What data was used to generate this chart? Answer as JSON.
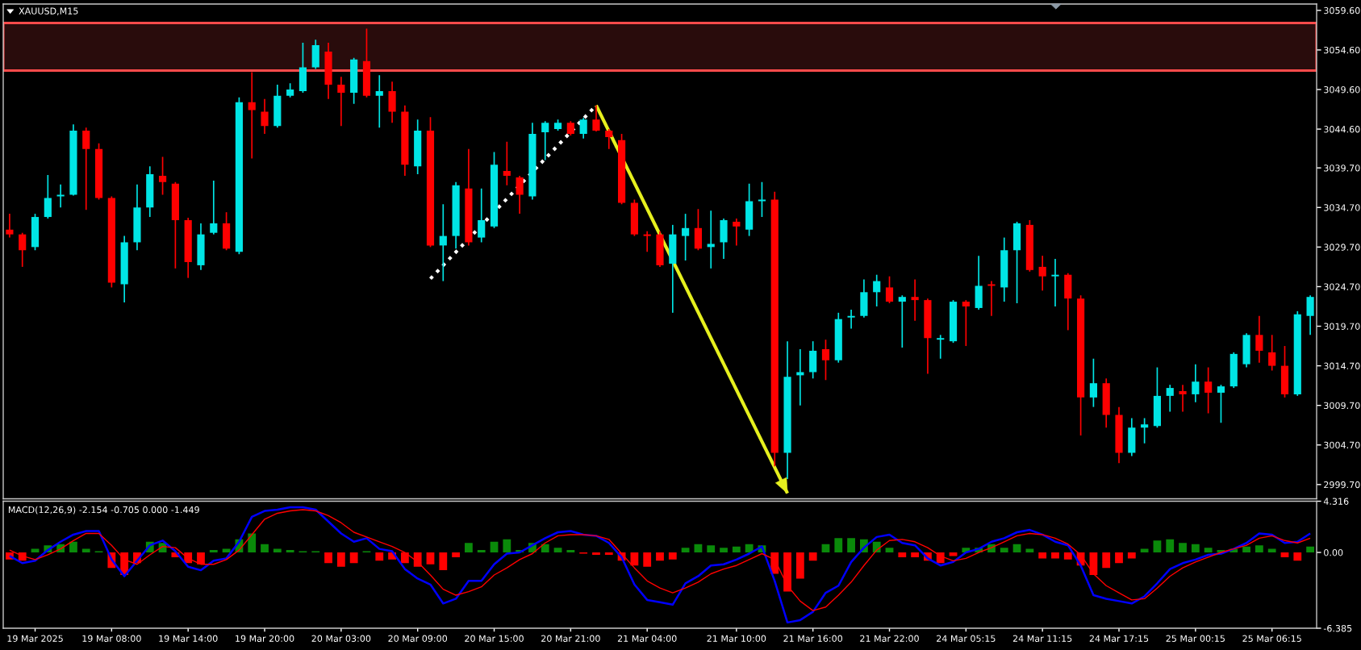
{
  "chart_data": [
    {
      "type": "candlestick",
      "title": "XAUUSD,M15",
      "categories": [
        null,
        null,
        null,
        null,
        null,
        null,
        null,
        null,
        null,
        null,
        null,
        null,
        null,
        null,
        null,
        null,
        null,
        null,
        null,
        null,
        null,
        null,
        null,
        null,
        null,
        null,
        null,
        null,
        null,
        null,
        null,
        null,
        null,
        null,
        null,
        null,
        null,
        null,
        null,
        null,
        null,
        null,
        null,
        null,
        null,
        null,
        null,
        null,
        null,
        null,
        null,
        null,
        null,
        null,
        null,
        null,
        null,
        null,
        null,
        null,
        null,
        null,
        null,
        null,
        null,
        null,
        null,
        null,
        null,
        null,
        null,
        null,
        null,
        null,
        null,
        null,
        null,
        null,
        null,
        null,
        null,
        null,
        null,
        null,
        null,
        null,
        null,
        null,
        null,
        null,
        null,
        null,
        null,
        null,
        null,
        null,
        null,
        null,
        null,
        null,
        null,
        null,
        null
      ],
      "ohlc": [
        [
          3031.9,
          3033.9,
          3030.9,
          3031.3
        ],
        [
          3031.3,
          3031.5,
          3027.2,
          3029.3
        ],
        [
          3029.7,
          3033.9,
          3029.3,
          3033.5
        ],
        [
          3033.5,
          3038.8,
          3033.3,
          3035.9
        ],
        [
          3036.1,
          3037.6,
          3034.7,
          3036.3
        ],
        [
          3036.3,
          3045.2,
          3036.2,
          3044.4
        ],
        [
          3044.4,
          3044.8,
          3034.4,
          3042.1
        ],
        [
          3042.1,
          3042.8,
          3035.7,
          3035.9
        ],
        [
          3035.9,
          3036.1,
          3024.6,
          3025.2
        ],
        [
          3025.0,
          3031.1,
          3022.7,
          3030.3
        ],
        [
          3030.3,
          3037.6,
          3029.3,
          3034.7
        ],
        [
          3034.7,
          3039.9,
          3033.5,
          3038.9
        ],
        [
          3038.7,
          3041.1,
          3036.3,
          3037.9
        ],
        [
          3037.7,
          3037.9,
          3027.0,
          3033.1
        ],
        [
          3033.1,
          3033.4,
          3025.8,
          3027.8
        ],
        [
          3027.4,
          3032.7,
          3026.8,
          3031.3
        ],
        [
          3031.5,
          3038.1,
          3031.3,
          3032.7
        ],
        [
          3032.7,
          3034.1,
          3029.3,
          3029.5
        ],
        [
          3029.1,
          3048.6,
          3028.8,
          3048.0
        ],
        [
          3048.0,
          3051.8,
          3040.9,
          3047.0
        ],
        [
          3046.8,
          3048.4,
          3044.0,
          3045.0
        ],
        [
          3045.0,
          3050.2,
          3044.8,
          3048.8
        ],
        [
          3048.8,
          3050.4,
          3048.6,
          3049.6
        ],
        [
          3049.4,
          3055.5,
          3049.2,
          3052.4
        ],
        [
          3052.4,
          3055.9,
          3052.2,
          3055.2
        ],
        [
          3054.4,
          3055.5,
          3048.4,
          3050.2
        ],
        [
          3050.2,
          3051.2,
          3045.0,
          3049.2
        ],
        [
          3049.2,
          3053.6,
          3047.8,
          3053.4
        ],
        [
          3053.2,
          3057.3,
          3048.6,
          3048.8
        ],
        [
          3048.8,
          3051.4,
          3044.8,
          3049.4
        ],
        [
          3049.4,
          3050.6,
          3045.4,
          3046.8
        ],
        [
          3046.8,
          3047.6,
          3038.7,
          3040.1
        ],
        [
          3039.9,
          3045.8,
          3038.9,
          3044.4
        ],
        [
          3044.4,
          3046.1,
          3029.7,
          3029.9
        ],
        [
          3029.9,
          3035.1,
          3025.4,
          3031.1
        ],
        [
          3031.1,
          3037.9,
          3029.5,
          3037.5
        ],
        [
          3037.1,
          3042.1,
          3029.9,
          3030.3
        ],
        [
          3030.9,
          3037.1,
          3030.3,
          3033.1
        ],
        [
          3032.3,
          3041.7,
          3032.1,
          3040.1
        ],
        [
          3039.3,
          3043.0,
          3037.5,
          3038.7
        ],
        [
          3038.5,
          3038.7,
          3033.9,
          3036.3
        ],
        [
          3036.1,
          3045.4,
          3035.7,
          3044.0
        ],
        [
          3044.2,
          3045.6,
          3040.7,
          3045.4
        ],
        [
          3044.6,
          3045.8,
          3044.4,
          3045.4
        ],
        [
          3045.4,
          3045.6,
          3043.8,
          3044.0
        ],
        [
          3044.0,
          3046.0,
          3043.4,
          3045.8
        ],
        [
          3045.8,
          3047.6,
          3044.3,
          3044.4
        ],
        [
          3044.4,
          3044.6,
          3042.1,
          3043.6
        ],
        [
          3043.2,
          3044.0,
          3035.1,
          3035.3
        ],
        [
          3035.3,
          3035.7,
          3031.1,
          3031.3
        ],
        [
          3031.3,
          3031.7,
          3029.1,
          3031.1
        ],
        [
          3031.3,
          3031.7,
          3027.2,
          3027.4
        ],
        [
          3027.6,
          3032.5,
          3021.4,
          3031.3
        ],
        [
          3031.1,
          3033.9,
          3028.0,
          3032.1
        ],
        [
          3032.1,
          3034.5,
          3029.3,
          3029.5
        ],
        [
          3029.7,
          3034.3,
          3027.0,
          3030.1
        ],
        [
          3030.3,
          3033.3,
          3028.2,
          3033.1
        ],
        [
          3032.9,
          3033.3,
          3029.9,
          3032.3
        ],
        [
          3031.9,
          3037.7,
          3031.1,
          3035.5
        ],
        [
          3035.5,
          3037.9,
          3033.5,
          3035.7
        ],
        [
          3035.7,
          3036.7,
          3002.0,
          3003.7
        ],
        [
          3003.7,
          3017.8,
          3000.4,
          3013.3
        ],
        [
          3013.5,
          3016.8,
          3009.7,
          3013.9
        ],
        [
          3013.9,
          3017.8,
          3013.1,
          3016.6
        ],
        [
          3016.8,
          3018.0,
          3012.9,
          3015.4
        ],
        [
          3015.4,
          3021.4,
          3015.1,
          3020.6
        ],
        [
          3020.8,
          3021.8,
          3019.4,
          3021.0
        ],
        [
          3021.0,
          3025.6,
          3020.8,
          3024.0
        ],
        [
          3024.0,
          3026.2,
          3022.2,
          3025.4
        ],
        [
          3024.6,
          3026.0,
          3022.6,
          3022.8
        ],
        [
          3022.8,
          3023.6,
          3017.0,
          3023.4
        ],
        [
          3023.4,
          3025.6,
          3020.4,
          3023.0
        ],
        [
          3023.0,
          3023.2,
          3013.7,
          3018.2
        ],
        [
          3018.0,
          3018.6,
          3015.6,
          3018.2
        ],
        [
          3017.8,
          3023.0,
          3017.6,
          3022.8
        ],
        [
          3022.8,
          3023.0,
          3017.2,
          3022.2
        ],
        [
          3022.0,
          3028.6,
          3021.8,
          3024.8
        ],
        [
          3025.0,
          3025.4,
          3021.0,
          3024.8
        ],
        [
          3024.6,
          3030.9,
          3022.8,
          3029.3
        ],
        [
          3029.3,
          3032.9,
          3022.6,
          3032.7
        ],
        [
          3032.5,
          3033.1,
          3026.6,
          3026.8
        ],
        [
          3027.2,
          3028.6,
          3024.2,
          3026.0
        ],
        [
          3026.0,
          3028.2,
          3022.2,
          3026.2
        ],
        [
          3026.2,
          3026.4,
          3019.2,
          3023.2
        ],
        [
          3023.2,
          3023.6,
          3005.9,
          3010.7
        ],
        [
          3010.7,
          3015.6,
          3009.5,
          3012.5
        ],
        [
          3012.5,
          3013.1,
          3006.9,
          3008.5
        ],
        [
          3008.5,
          3009.5,
          3002.4,
          3003.7
        ],
        [
          3003.7,
          3008.1,
          3003.3,
          3006.9
        ],
        [
          3006.9,
          3008.1,
          3004.9,
          3007.3
        ],
        [
          3007.1,
          3014.5,
          3006.9,
          3010.9
        ],
        [
          3010.9,
          3012.3,
          3008.9,
          3011.9
        ],
        [
          3011.5,
          3012.3,
          3008.9,
          3011.1
        ],
        [
          3011.1,
          3014.9,
          3010.1,
          3012.7
        ],
        [
          3012.7,
          3014.5,
          3008.7,
          3011.3
        ],
        [
          3011.3,
          3012.3,
          3007.5,
          3012.1
        ],
        [
          3012.1,
          3016.4,
          3011.9,
          3016.2
        ],
        [
          3014.9,
          3018.8,
          3014.5,
          3018.6
        ],
        [
          3018.6,
          3021.0,
          3015.1,
          3016.6
        ],
        [
          3016.4,
          3018.6,
          3014.1,
          3014.7
        ],
        [
          3014.7,
          3017.2,
          3010.7,
          3011.1
        ],
        [
          3011.1,
          3021.6,
          3010.9,
          3021.2
        ],
        [
          3021.0,
          3023.6,
          3018.6,
          3023.4
        ]
      ],
      "colors": [
        "#ff0000",
        "#ff0000",
        "#00e5e5",
        "#00e5e5",
        "#00e5e5",
        "#00e5e5",
        "#ff0000",
        "#ff0000",
        "#ff0000",
        "#00e5e5",
        "#00e5e5",
        "#00e5e5",
        "#ff0000",
        "#ff0000",
        "#ff0000",
        "#00e5e5",
        "#00e5e5",
        "#ff0000",
        "#00e5e5",
        "#ff0000",
        "#ff0000",
        "#00e5e5",
        "#00e5e5",
        "#00e5e5",
        "#00e5e5",
        "#ff0000",
        "#ff0000",
        "#00e5e5",
        "#ff0000",
        "#00e5e5",
        "#ff0000",
        "#ff0000",
        "#00e5e5",
        "#ff0000",
        "#00e5e5",
        "#00e5e5",
        "#ff0000",
        "#00e5e5",
        "#00e5e5",
        "#ff0000",
        "#ff0000",
        "#00e5e5",
        "#00e5e5",
        "#00e5e5",
        "#ff0000",
        "#00e5e5",
        "#ff0000",
        "#ff0000",
        "#ff0000",
        "#ff0000",
        "#ff0000",
        "#ff0000",
        "#00e5e5",
        "#00e5e5",
        "#ff0000",
        "#00e5e5",
        "#00e5e5",
        "#ff0000",
        "#00e5e5",
        "#00e5e5",
        "#ff0000",
        "#00e5e5",
        "#00e5e5",
        "#00e5e5",
        "#ff0000",
        "#00e5e5",
        "#00e5e5",
        "#00e5e5",
        "#00e5e5",
        "#ff0000",
        "#00e5e5",
        "#ff0000",
        "#ff0000",
        "#00e5e5",
        "#00e5e5",
        "#ff0000",
        "#00e5e5",
        "#ff0000",
        "#00e5e5",
        "#00e5e5",
        "#ff0000",
        "#ff0000",
        "#00e5e5",
        "#ff0000",
        "#ff0000",
        "#00e5e5",
        "#ff0000",
        "#ff0000",
        "#00e5e5",
        "#00e5e5",
        "#00e5e5",
        "#00e5e5",
        "#ff0000",
        "#00e5e5",
        "#ff0000",
        "#00e5e5",
        "#00e5e5",
        "#00e5e5",
        "#ff0000",
        "#ff0000",
        "#ff0000",
        "#00e5e5",
        "#00e5e5"
      ],
      "series": [
        {
          "type": "line",
          "color": "#ffffff",
          "line_style": "dotted",
          "values": [
            null,
            null,
            null,
            null,
            null,
            null,
            null,
            null,
            null,
            null,
            null,
            null,
            null,
            null,
            null,
            null,
            null,
            null,
            null,
            null,
            null,
            null,
            null,
            null,
            null,
            null,
            null,
            null,
            null,
            null,
            null,
            null,
            null,
            3025.7,
            null,
            null,
            null,
            null,
            null,
            null,
            null,
            null,
            null,
            null,
            null,
            null,
            3047.6,
            null,
            null,
            null,
            null,
            null,
            null,
            null,
            null,
            null,
            null,
            null,
            null,
            null,
            null,
            null,
            null,
            null,
            null,
            null,
            null,
            null,
            null,
            null,
            null,
            null,
            null,
            null,
            null,
            null,
            null,
            null,
            null,
            null,
            null,
            null,
            null,
            null,
            null,
            null,
            null,
            null,
            null,
            null,
            null,
            null,
            null,
            null,
            null,
            null,
            null,
            null,
            null,
            null,
            null,
            null,
            null
          ]
        },
        {
          "type": "line",
          "color": "#e6f01e",
          "line_style": "solid",
          "values": [
            null,
            null,
            null,
            null,
            null,
            null,
            null,
            null,
            null,
            null,
            null,
            null,
            null,
            null,
            null,
            null,
            null,
            null,
            null,
            null,
            null,
            null,
            null,
            null,
            null,
            null,
            null,
            null,
            null,
            null,
            null,
            null,
            null,
            null,
            null,
            null,
            null,
            null,
            null,
            null,
            null,
            null,
            null,
            null,
            null,
            null,
            3047.6,
            null,
            null,
            null,
            null,
            null,
            null,
            null,
            null,
            null,
            null,
            null,
            null,
            null,
            null,
            2998.6,
            null,
            null,
            null,
            null,
            null,
            null,
            null,
            null,
            null,
            null,
            null,
            null,
            null,
            null,
            null,
            null,
            null,
            null,
            null,
            null,
            null,
            null,
            null,
            null,
            null,
            null,
            null,
            null,
            null,
            null,
            null,
            null,
            null,
            null,
            null,
            null,
            null,
            null,
            null,
            null,
            null
          ]
        }
      ],
      "bands": [
        {
          "axis": "y",
          "from": 3052.0,
          "to": 3058.0,
          "color": "#ff4b4b"
        }
      ],
      "ylim": [
        2997.9,
        3060.4
      ],
      "yticks": [
        {
          "value": 3059.6,
          "label": "3059.60"
        },
        {
          "value": 3054.6,
          "label": "3054.60"
        },
        {
          "value": 3049.6,
          "label": "3049.60"
        },
        {
          "value": 3044.6,
          "label": "3044.60"
        },
        {
          "value": 3039.7,
          "label": "3039.70"
        },
        {
          "value": 3034.7,
          "label": "3034.70"
        },
        {
          "value": 3029.7,
          "label": "3029.70"
        },
        {
          "value": 3024.7,
          "label": "3024.70"
        },
        {
          "value": 3019.7,
          "label": "3019.70"
        },
        {
          "value": 3014.7,
          "label": "3014.70"
        },
        {
          "value": 3009.7,
          "label": "3009.70"
        },
        {
          "value": 3004.7,
          "label": "3004.70"
        },
        {
          "value": 2999.7,
          "label": "2999.70"
        }
      ],
      "tick_labels": "y"
    },
    {
      "type": "line",
      "title": "MACD(12,26,9) -2.154 -0.705 0.000 -1.449",
      "categories": [
        null,
        null,
        "19 Mar 2025",
        null,
        null,
        null,
        null,
        null,
        "19 Mar 08:00",
        null,
        null,
        null,
        null,
        null,
        "19 Mar 14:00",
        null,
        null,
        null,
        null,
        null,
        "19 Mar 20:00",
        null,
        null,
        null,
        null,
        null,
        "20 Mar 03:00",
        null,
        null,
        null,
        null,
        null,
        "20 Mar 09:00",
        null,
        null,
        null,
        null,
        null,
        "20 Mar 15:00",
        null,
        null,
        null,
        null,
        null,
        "20 Mar 21:00",
        null,
        null,
        null,
        null,
        null,
        "21 Mar 04:00",
        null,
        null,
        null,
        null,
        null,
        null,
        "21 Mar 10:00",
        null,
        null,
        null,
        null,
        null,
        "21 Mar 16:00",
        null,
        null,
        null,
        null,
        null,
        "21 Mar 22:00",
        null,
        null,
        null,
        null,
        null,
        "24 Mar 05:15",
        null,
        null,
        null,
        null,
        null,
        "24 Mar 11:15",
        null,
        null,
        null,
        null,
        null,
        "24 Mar 17:15",
        null,
        null,
        null,
        null,
        null,
        "25 Mar 00:15",
        null,
        null,
        null,
        null,
        null,
        "25 Mar 06:15",
        null,
        null,
        null
      ],
      "series": [
        {
          "type": "bar",
          "values": [
            -0.6,
            -0.7,
            0.3,
            0.6,
            0.7,
            0.9,
            0.3,
            0.1,
            -1.3,
            -1.9,
            -0.9,
            0.9,
            0.8,
            -0.4,
            -0.9,
            -1.0,
            0.2,
            0.3,
            1.1,
            1.6,
            0.7,
            0.3,
            0.2,
            0.1,
            0.1,
            -0.9,
            -1.2,
            -0.9,
            0.1,
            -0.7,
            -0.6,
            -0.9,
            -1.2,
            -1.0,
            -1.5,
            -0.4,
            0.8,
            0.2,
            0.9,
            1.1,
            0.2,
            0.8,
            0.7,
            0.4,
            0.2,
            -0.1,
            -0.2,
            -0.2,
            -0.7,
            -1.1,
            -1.2,
            -0.7,
            -0.6,
            0.4,
            0.7,
            0.6,
            0.4,
            0.5,
            0.7,
            0.6,
            -1.8,
            -3.3,
            -2.2,
            -0.7,
            0.7,
            1.2,
            1.2,
            1.1,
            0.9,
            0.4,
            -0.4,
            -0.4,
            -0.7,
            -0.9,
            -0.3,
            0.4,
            0.4,
            0.7,
            0.4,
            0.7,
            0.3,
            -0.5,
            -0.5,
            -0.6,
            -1.1,
            -1.9,
            -1.3,
            -0.9,
            -0.5,
            0.3,
            1.0,
            1.1,
            0.8,
            0.7,
            0.4,
            0.2,
            0.3,
            0.5,
            0.6,
            0.3,
            -0.4,
            -0.7,
            0.5
          ],
          "colors": [
            "#ff0000",
            "#ff0000",
            "#0a8a0a",
            "#0a8a0a",
            "#0a8a0a",
            "#0a8a0a",
            "#0a8a0a",
            "#0a8a0a",
            "#ff0000",
            "#ff0000",
            "#ff0000",
            "#0a8a0a",
            "#0a8a0a",
            "#ff0000",
            "#ff0000",
            "#ff0000",
            "#0a8a0a",
            "#0a8a0a",
            "#0a8a0a",
            "#0a8a0a",
            "#0a8a0a",
            "#0a8a0a",
            "#0a8a0a",
            "#0a8a0a",
            "#0a8a0a",
            "#ff0000",
            "#ff0000",
            "#ff0000",
            "#0a8a0a",
            "#ff0000",
            "#ff0000",
            "#ff0000",
            "#ff0000",
            "#ff0000",
            "#ff0000",
            "#ff0000",
            "#0a8a0a",
            "#0a8a0a",
            "#0a8a0a",
            "#0a8a0a",
            "#0a8a0a",
            "#0a8a0a",
            "#0a8a0a",
            "#0a8a0a",
            "#0a8a0a",
            "#ff0000",
            "#ff0000",
            "#ff0000",
            "#ff0000",
            "#ff0000",
            "#ff0000",
            "#ff0000",
            "#ff0000",
            "#0a8a0a",
            "#0a8a0a",
            "#0a8a0a",
            "#0a8a0a",
            "#0a8a0a",
            "#0a8a0a",
            "#0a8a0a",
            "#ff0000",
            "#ff0000",
            "#ff0000",
            "#ff0000",
            "#0a8a0a",
            "#0a8a0a",
            "#0a8a0a",
            "#0a8a0a",
            "#0a8a0a",
            "#0a8a0a",
            "#ff0000",
            "#ff0000",
            "#ff0000",
            "#ff0000",
            "#ff0000",
            "#0a8a0a",
            "#0a8a0a",
            "#0a8a0a",
            "#0a8a0a",
            "#0a8a0a",
            "#0a8a0a",
            "#ff0000",
            "#ff0000",
            "#ff0000",
            "#ff0000",
            "#ff0000",
            "#ff0000",
            "#ff0000",
            "#ff0000",
            "#0a8a0a",
            "#0a8a0a",
            "#0a8a0a",
            "#0a8a0a",
            "#0a8a0a",
            "#0a8a0a",
            "#0a8a0a",
            "#0a8a0a",
            "#0a8a0a",
            "#0a8a0a",
            "#0a8a0a",
            "#ff0000",
            "#ff0000",
            "#0a8a0a"
          ]
        },
        {
          "color": "#0000ff",
          "values": [
            -0.3,
            -0.9,
            -0.7,
            0.2,
            0.9,
            1.5,
            1.8,
            1.8,
            -0.6,
            -2.0,
            -0.7,
            0.6,
            1.0,
            0.1,
            -1.2,
            -1.5,
            -0.7,
            -0.5,
            0.9,
            3.0,
            3.5,
            3.6,
            3.8,
            3.8,
            3.6,
            2.6,
            1.6,
            0.9,
            1.2,
            0.3,
            0.1,
            -1.4,
            -2.2,
            -2.7,
            -4.3,
            -3.9,
            -2.4,
            -2.4,
            -1.0,
            -0.1,
            0.0,
            0.6,
            1.2,
            1.7,
            1.8,
            1.5,
            1.4,
            0.8,
            -0.4,
            -2.7,
            -4.0,
            -4.2,
            -4.4,
            -2.6,
            -2.0,
            -1.1,
            -1.0,
            -0.6,
            -0.1,
            0.5,
            -2.4,
            -5.9,
            -5.7,
            -5.0,
            -3.4,
            -2.8,
            -0.8,
            0.4,
            1.3,
            1.5,
            0.8,
            0.6,
            -0.5,
            -1.1,
            -0.8,
            0.0,
            0.3,
            0.9,
            1.2,
            1.7,
            1.9,
            1.5,
            0.9,
            0.6,
            -1.1,
            -3.6,
            -3.9,
            -4.1,
            -4.3,
            -3.7,
            -2.6,
            -1.4,
            -0.9,
            -0.6,
            -0.2,
            -0.1,
            0.3,
            0.8,
            1.6,
            1.5,
            0.8,
            0.9,
            1.6
          ]
        },
        {
          "color": "#ff0000",
          "values": [
            0.2,
            -0.3,
            -0.6,
            -0.2,
            0.3,
            1.0,
            1.6,
            1.6,
            0.6,
            -0.6,
            -1.0,
            -0.2,
            0.5,
            0.4,
            -0.5,
            -1.0,
            -1.0,
            -0.6,
            0.2,
            1.5,
            2.8,
            3.3,
            3.5,
            3.6,
            3.5,
            3.1,
            2.5,
            1.7,
            1.3,
            0.9,
            0.5,
            0.0,
            -0.8,
            -1.9,
            -3.1,
            -3.6,
            -3.3,
            -2.9,
            -1.9,
            -1.3,
            -0.6,
            -0.1,
            0.8,
            1.4,
            1.5,
            1.5,
            1.4,
            1.1,
            -0.1,
            -1.3,
            -2.4,
            -3.0,
            -3.4,
            -3.0,
            -2.5,
            -1.8,
            -1.4,
            -1.1,
            -0.6,
            -0.1,
            -0.6,
            -2.8,
            -4.1,
            -4.9,
            -4.6,
            -3.6,
            -2.5,
            -1.1,
            0.2,
            1.0,
            1.1,
            0.9,
            0.4,
            -0.3,
            -0.7,
            -0.5,
            0.0,
            0.4,
            0.9,
            1.4,
            1.6,
            1.5,
            1.2,
            0.7,
            -0.2,
            -1.8,
            -2.8,
            -3.4,
            -4.0,
            -3.9,
            -3.0,
            -2.0,
            -1.3,
            -0.8,
            -0.4,
            0.0,
            0.3,
            0.6,
            1.2,
            1.4,
            1.0,
            0.8,
            1.2
          ]
        }
      ],
      "ylim": [
        -6.385,
        4.316
      ],
      "yticks": [
        4.316,
        {
          "value": 0,
          "label": "0.00"
        },
        -6.385
      ]
    }
  ]
}
